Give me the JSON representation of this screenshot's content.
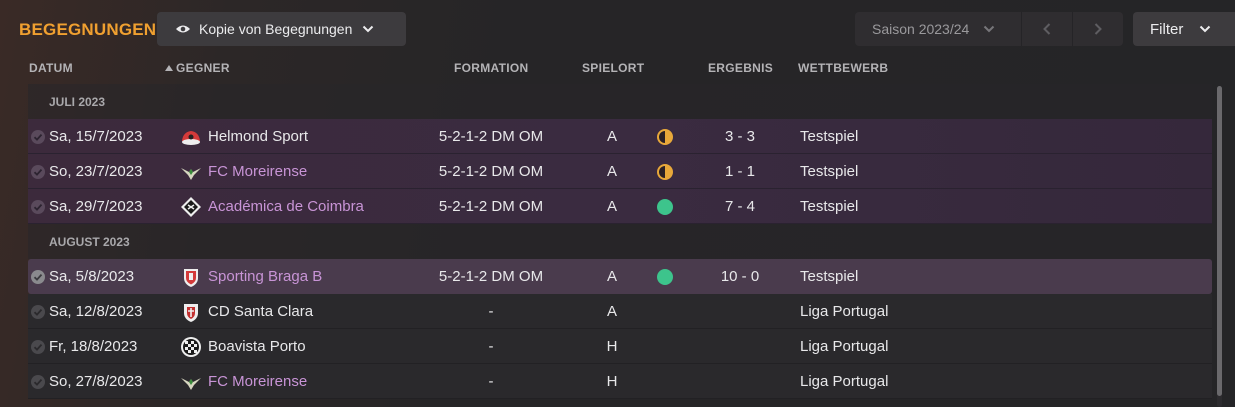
{
  "header": {
    "title": "BEGEGNUNGEN",
    "view_label": "Kopie von Begegnungen",
    "season_label": "Saison 2023/24",
    "filter_label": "Filter"
  },
  "columns": {
    "datum": "DATUM",
    "gegner": "GEGNER",
    "formation": "FORMATION",
    "spielort": "SPIELORT",
    "ergebnis": "ERGEBNIS",
    "wettbewerb": "WETTBEWERB"
  },
  "groups": {
    "july": "JULI 2023",
    "august": "AUGUST 2023"
  },
  "matches": [
    {
      "date": "Sa, 15/7/2023",
      "opponent": "Helmond Sport",
      "formation": "5-2-1-2 DM OM",
      "venue": "A",
      "indicator": "draw",
      "result": "3 - 3",
      "competition": "Testspiel"
    },
    {
      "date": "So, 23/7/2023",
      "opponent": "FC Moreirense",
      "formation": "5-2-1-2 DM OM",
      "venue": "A",
      "indicator": "draw",
      "result": "1 - 1",
      "competition": "Testspiel"
    },
    {
      "date": "Sa, 29/7/2023",
      "opponent": "Académica de Coimbra",
      "formation": "5-2-1-2 DM OM",
      "venue": "A",
      "indicator": "win",
      "result": "7 - 4",
      "competition": "Testspiel"
    },
    {
      "date": "Sa, 5/8/2023",
      "opponent": "Sporting Braga B",
      "formation": "5-2-1-2 DM OM",
      "venue": "A",
      "indicator": "win",
      "result": "10 - 0",
      "competition": "Testspiel"
    },
    {
      "date": "Sa, 12/8/2023",
      "opponent": "CD Santa Clara",
      "formation": "-",
      "venue": "A",
      "indicator": "",
      "result": "",
      "competition": "Liga Portugal"
    },
    {
      "date": "Fr, 18/8/2023",
      "opponent": "Boavista Porto",
      "formation": "-",
      "venue": "H",
      "indicator": "",
      "result": "",
      "competition": "Liga Portugal"
    },
    {
      "date": "So, 27/8/2023",
      "opponent": "FC Moreirense",
      "formation": "-",
      "venue": "H",
      "indicator": "",
      "result": "",
      "competition": "Liga Portugal"
    }
  ],
  "colors": {
    "accent": "#f0a030",
    "draw": "#e8a83a",
    "win": "#3dc48c",
    "link": "#c894d6"
  },
  "icons": {
    "view": "eye-icon",
    "dropdown": "chevron-down-icon",
    "prev": "chevron-left-icon",
    "next": "chevron-right-icon",
    "played": "check-circle-icon"
  }
}
